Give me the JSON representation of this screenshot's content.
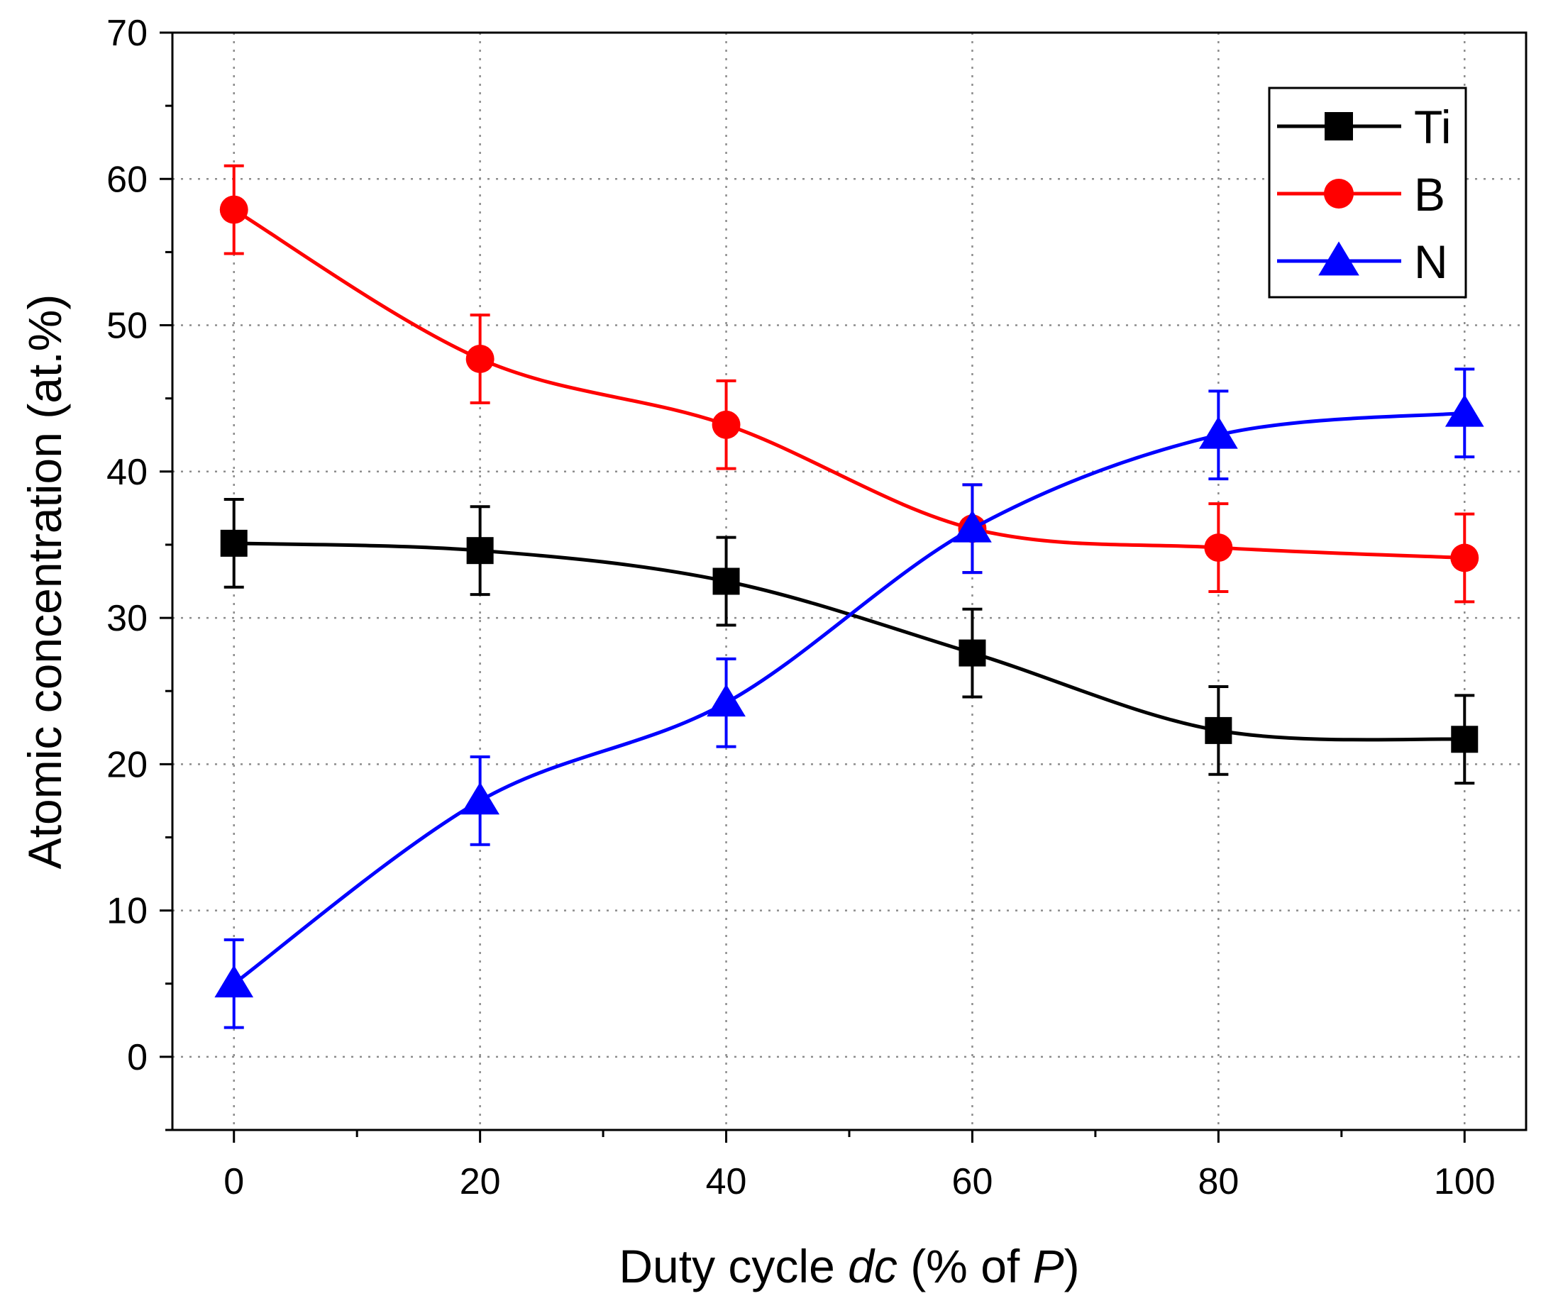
{
  "chart_data": {
    "type": "line",
    "title": "",
    "xlabel_parts": [
      {
        "text": "Duty cycle ",
        "italic": false
      },
      {
        "text": "dc",
        "italic": true
      },
      {
        "text": " (% of ",
        "italic": false
      },
      {
        "text": "P",
        "italic": true
      },
      {
        "text": ")",
        "italic": false
      }
    ],
    "ylabel": "Atomic concentration (at.%)",
    "xlim": [
      -5,
      105
    ],
    "ylim": [
      -5,
      70
    ],
    "xticks": [
      0,
      20,
      40,
      60,
      80,
      100
    ],
    "xtick_labels": [
      "0",
      "20",
      "40",
      "60",
      "80",
      "100"
    ],
    "xminor": [
      10,
      30,
      50,
      70,
      90
    ],
    "yticks": [
      0,
      10,
      20,
      30,
      40,
      50,
      60,
      70
    ],
    "ytick_labels": [
      "0",
      "10",
      "20",
      "30",
      "40",
      "50",
      "60",
      "70"
    ],
    "yminor": [
      -5,
      5,
      15,
      25,
      35,
      45,
      55,
      65
    ],
    "grid": true,
    "legend_position": "top-right",
    "x": [
      0,
      20,
      40,
      60,
      80,
      100
    ],
    "series": [
      {
        "name": "Ti",
        "color": "#000000",
        "marker": "square",
        "values": [
          35.1,
          34.6,
          32.5,
          27.6,
          22.3,
          21.7
        ],
        "errors": [
          3.0,
          3.0,
          3.0,
          3.0,
          3.0,
          3.0
        ]
      },
      {
        "name": "B",
        "color": "#ff0000",
        "marker": "circle",
        "values": [
          57.9,
          47.7,
          43.2,
          36.1,
          34.8,
          34.1
        ],
        "errors": [
          3.0,
          3.0,
          3.0,
          3.0,
          3.0,
          3.0
        ]
      },
      {
        "name": "N",
        "color": "#0000ff",
        "marker": "triangle",
        "values": [
          5.0,
          17.5,
          24.2,
          36.1,
          42.5,
          44.0
        ],
        "errors": [
          3.0,
          3.0,
          3.0,
          3.0,
          3.0,
          3.0
        ]
      }
    ]
  }
}
